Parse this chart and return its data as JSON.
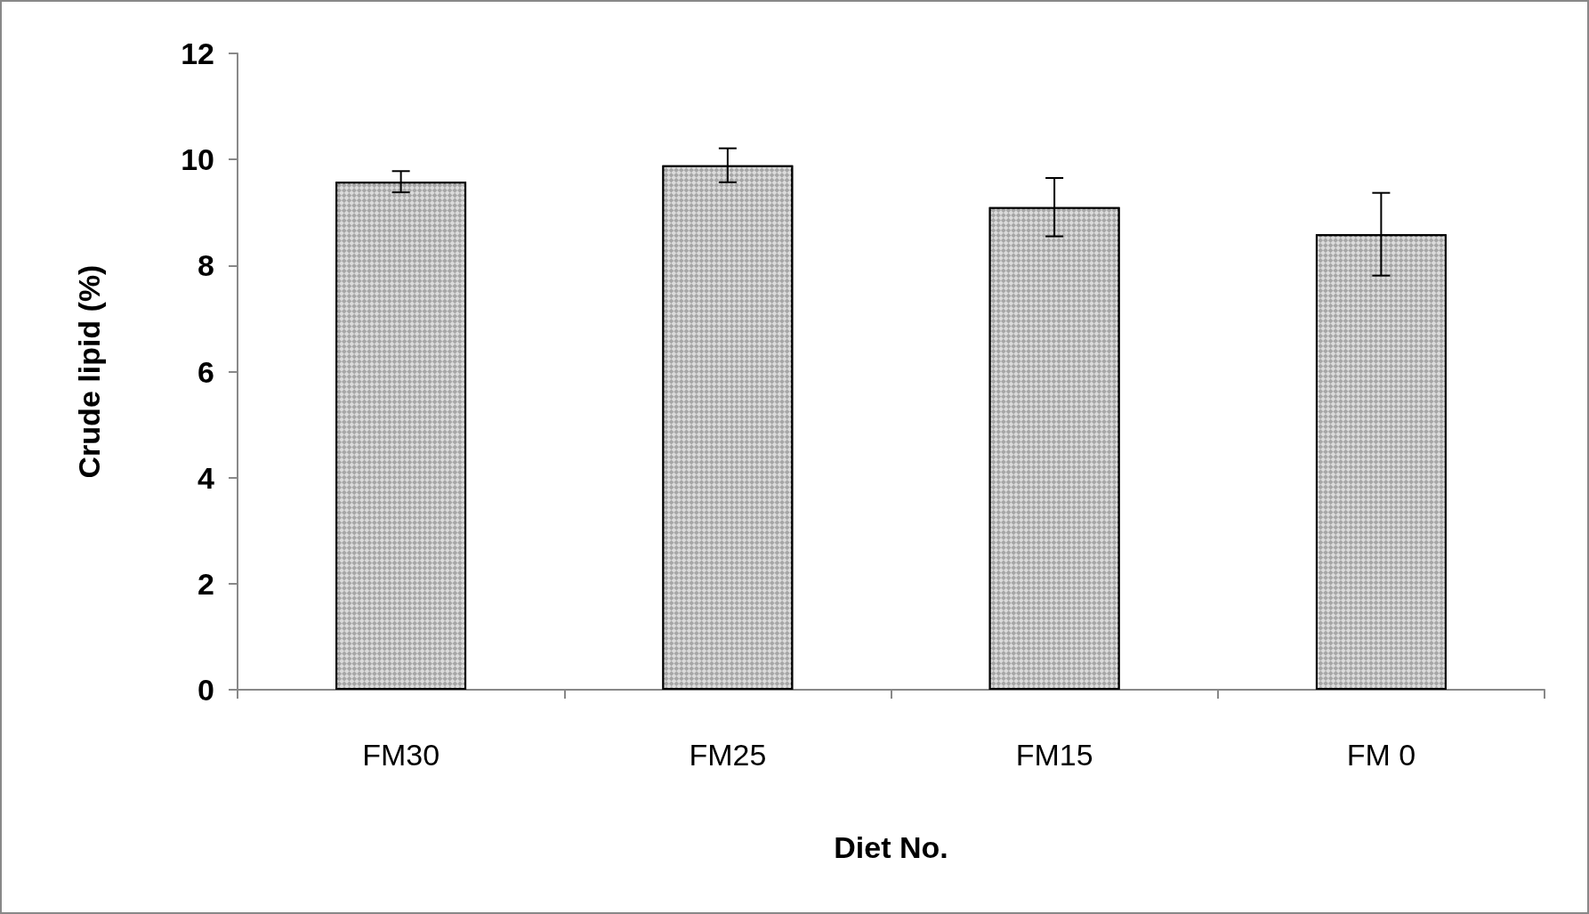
{
  "chart_data": {
    "type": "bar",
    "xlabel": "Diet No.",
    "ylabel": "Crude lipid (%)",
    "categories": [
      "FM30",
      "FM25",
      "FM15",
      "FM 0"
    ],
    "values": [
      9.58,
      9.89,
      9.1,
      8.59
    ],
    "errors": [
      0.2,
      0.32,
      0.55,
      0.78
    ],
    "color": "#a6a6a6",
    "ylim": [
      0,
      12
    ],
    "yticks": [
      0,
      2,
      4,
      6,
      8,
      10,
      12
    ],
    "grid": false
  }
}
